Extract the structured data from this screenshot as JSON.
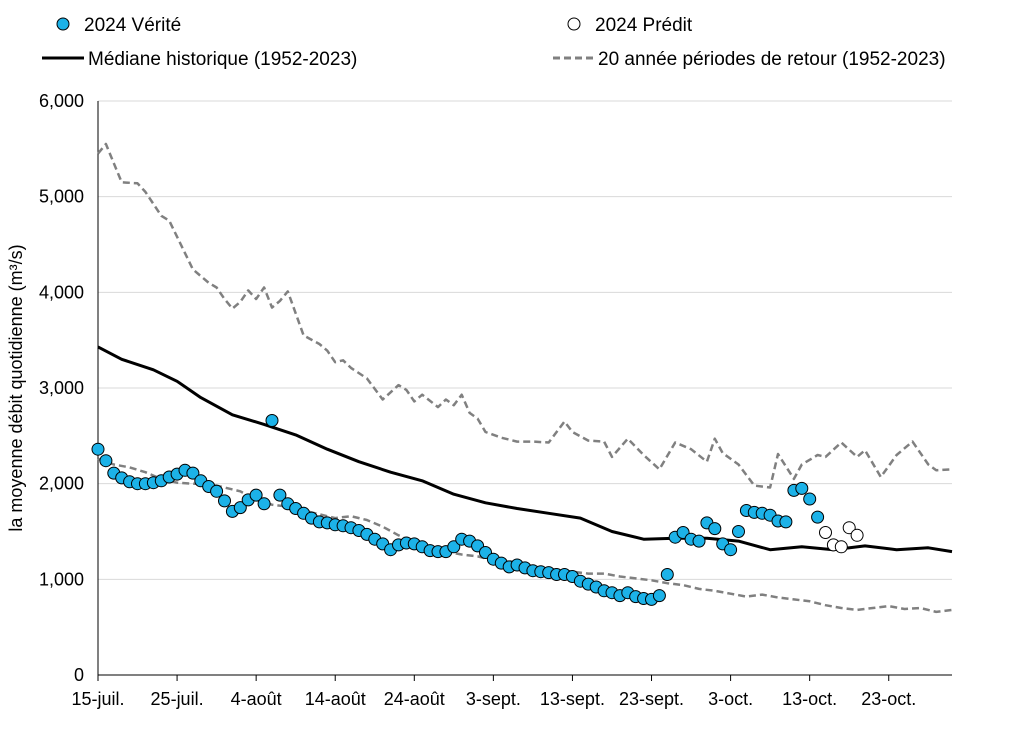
{
  "chart_data": {
    "type": "line",
    "title": "",
    "xlabel": "",
    "ylabel": "la moyenne débit quotidienne (m³/s)",
    "ylim": [
      0,
      6000
    ],
    "yticks": [
      0,
      1000,
      2000,
      3000,
      4000,
      5000,
      6000
    ],
    "ytick_labels": [
      "0",
      "1,000",
      "2,000",
      "3,000",
      "4,000",
      "5,000",
      "6,000"
    ],
    "x_start": "2024-07-15",
    "x_end": "2024-10-31",
    "xtick_labels": [
      "15-juil.",
      "25-juil.",
      "4-août",
      "14-août",
      "24-août",
      "3-sept.",
      "13-sept.",
      "23-sept.",
      "3-oct.",
      "13-oct.",
      "23-oct."
    ],
    "xtick_dates": [
      "2024-07-15",
      "2024-07-25",
      "2024-08-04",
      "2024-08-14",
      "2024-08-24",
      "2024-09-03",
      "2024-09-13",
      "2024-09-23",
      "2024-10-03",
      "2024-10-13",
      "2024-10-23"
    ],
    "grid": "horizontal",
    "legend_position": "top",
    "colors": {
      "observed": "#1cb2e8",
      "median": "#000000",
      "return_period": "#808080"
    },
    "series": [
      {
        "name": "2024 Vérité",
        "kind": "scatter",
        "marker": "filled-circle",
        "x": [
          "2024-07-15",
          "2024-07-16",
          "2024-07-17",
          "2024-07-18",
          "2024-07-19",
          "2024-07-20",
          "2024-07-21",
          "2024-07-22",
          "2024-07-23",
          "2024-07-24",
          "2024-07-25",
          "2024-07-26",
          "2024-07-27",
          "2024-07-28",
          "2024-07-29",
          "2024-07-30",
          "2024-07-31",
          "2024-08-01",
          "2024-08-02",
          "2024-08-03",
          "2024-08-04",
          "2024-08-05",
          "2024-08-06",
          "2024-08-07",
          "2024-08-08",
          "2024-08-09",
          "2024-08-10",
          "2024-08-11",
          "2024-08-12",
          "2024-08-13",
          "2024-08-14",
          "2024-08-15",
          "2024-08-16",
          "2024-08-17",
          "2024-08-18",
          "2024-08-19",
          "2024-08-20",
          "2024-08-21",
          "2024-08-22",
          "2024-08-23",
          "2024-08-24",
          "2024-08-25",
          "2024-08-26",
          "2024-08-27",
          "2024-08-28",
          "2024-08-29",
          "2024-08-30",
          "2024-08-31",
          "2024-09-01",
          "2024-09-02",
          "2024-09-03",
          "2024-09-04",
          "2024-09-05",
          "2024-09-06",
          "2024-09-07",
          "2024-09-08",
          "2024-09-09",
          "2024-09-10",
          "2024-09-11",
          "2024-09-12",
          "2024-09-13",
          "2024-09-14",
          "2024-09-15",
          "2024-09-16",
          "2024-09-17",
          "2024-09-18",
          "2024-09-19",
          "2024-09-20",
          "2024-09-21",
          "2024-09-22",
          "2024-09-23",
          "2024-09-24",
          "2024-09-25",
          "2024-09-26",
          "2024-09-27",
          "2024-09-28",
          "2024-09-29",
          "2024-09-30",
          "2024-10-01",
          "2024-10-02",
          "2024-10-03",
          "2024-10-04",
          "2024-10-05",
          "2024-10-06",
          "2024-10-07",
          "2024-10-08",
          "2024-10-09",
          "2024-10-10",
          "2024-10-11",
          "2024-10-12",
          "2024-10-13",
          "2024-10-14"
        ],
        "y": [
          2360,
          2240,
          2110,
          2060,
          2020,
          2000,
          2000,
          2010,
          2030,
          2070,
          2100,
          2140,
          2110,
          2030,
          1970,
          1920,
          1820,
          1710,
          1750,
          1830,
          1880,
          1790,
          2660,
          1880,
          1790,
          1740,
          1690,
          1640,
          1600,
          1590,
          1570,
          1560,
          1540,
          1510,
          1470,
          1420,
          1370,
          1310,
          1360,
          1380,
          1370,
          1340,
          1300,
          1290,
          1290,
          1340,
          1420,
          1400,
          1350,
          1280,
          1210,
          1170,
          1130,
          1150,
          1120,
          1090,
          1080,
          1070,
          1050,
          1050,
          1030,
          980,
          950,
          920,
          880,
          860,
          830,
          860,
          820,
          800,
          790,
          830,
          1050,
          1440,
          1490,
          1420,
          1400,
          1590,
          1530,
          1370,
          1310,
          1500,
          1720,
          1700,
          1690,
          1670,
          1610,
          1600,
          1930,
          1950,
          1840,
          1650
        ]
      },
      {
        "name": "2024 Prédit",
        "kind": "scatter",
        "marker": "open-circle",
        "x": [
          "2024-10-15",
          "2024-10-16",
          "2024-10-17",
          "2024-10-18",
          "2024-10-19"
        ],
        "y": [
          1490,
          1360,
          1340,
          1540,
          1460
        ]
      },
      {
        "name": "Médiane historique (1952-2023)",
        "kind": "line",
        "style": "solid",
        "x": [
          "2024-07-15",
          "2024-07-18",
          "2024-07-22",
          "2024-07-25",
          "2024-07-28",
          "2024-08-01",
          "2024-08-05",
          "2024-08-09",
          "2024-08-13",
          "2024-08-17",
          "2024-08-21",
          "2024-08-25",
          "2024-08-29",
          "2024-09-02",
          "2024-09-06",
          "2024-09-10",
          "2024-09-14",
          "2024-09-18",
          "2024-09-22",
          "2024-09-26",
          "2024-09-30",
          "2024-10-04",
          "2024-10-08",
          "2024-10-12",
          "2024-10-16",
          "2024-10-20",
          "2024-10-24",
          "2024-10-28",
          "2024-10-31"
        ],
        "y": [
          3430,
          3300,
          3190,
          3070,
          2900,
          2720,
          2620,
          2510,
          2360,
          2230,
          2120,
          2030,
          1890,
          1800,
          1740,
          1690,
          1640,
          1500,
          1420,
          1430,
          1430,
          1400,
          1310,
          1340,
          1310,
          1350,
          1310,
          1330,
          1290
        ]
      },
      {
        "name": "20 année périodes de retour (1952-2023)",
        "kind": "line",
        "style": "dashed",
        "segments": [
          {
            "x": [
              "2024-07-15",
              "2024-07-16",
              "2024-07-17",
              "2024-07-18",
              "2024-07-20",
              "2024-07-21",
              "2024-07-23",
              "2024-07-24",
              "2024-07-25",
              "2024-07-27",
              "2024-07-29",
              "2024-07-30",
              "2024-07-31",
              "2024-08-01",
              "2024-08-02",
              "2024-08-03",
              "2024-08-04",
              "2024-08-05",
              "2024-08-06",
              "2024-08-07",
              "2024-08-08",
              "2024-08-10",
              "2024-08-12",
              "2024-08-13",
              "2024-08-14",
              "2024-08-15",
              "2024-08-16",
              "2024-08-18",
              "2024-08-20",
              "2024-08-22",
              "2024-08-23",
              "2024-08-24",
              "2024-08-25",
              "2024-08-27",
              "2024-08-28",
              "2024-08-29",
              "2024-08-30",
              "2024-08-31",
              "2024-09-01",
              "2024-09-02",
              "2024-09-04",
              "2024-09-06",
              "2024-09-08",
              "2024-09-10",
              "2024-09-12",
              "2024-09-13",
              "2024-09-15",
              "2024-09-17",
              "2024-09-18",
              "2024-09-20",
              "2024-09-22",
              "2024-09-24",
              "2024-09-26",
              "2024-09-28",
              "2024-09-30",
              "2024-10-01",
              "2024-10-02",
              "2024-10-04",
              "2024-10-06",
              "2024-10-08",
              "2024-10-09",
              "2024-10-11",
              "2024-10-12",
              "2024-10-13",
              "2024-10-14",
              "2024-10-15",
              "2024-10-17",
              "2024-10-19",
              "2024-10-20",
              "2024-10-22",
              "2024-10-24",
              "2024-10-26",
              "2024-10-28",
              "2024-10-29",
              "2024-10-31"
            ],
            "y": [
              5450,
              5550,
              5350,
              5150,
              5140,
              5050,
              4800,
              4750,
              4580,
              4240,
              4100,
              4050,
              3930,
              3830,
              3900,
              4020,
              3930,
              4050,
              3840,
              3910,
              4010,
              3550,
              3460,
              3390,
              3270,
              3290,
              3210,
              3100,
              2880,
              3030,
              2980,
              2860,
              2930,
              2800,
              2880,
              2820,
              2930,
              2740,
              2680,
              2540,
              2480,
              2440,
              2440,
              2430,
              2650,
              2540,
              2450,
              2440,
              2280,
              2470,
              2300,
              2150,
              2430,
              2360,
              2230,
              2470,
              2320,
              2200,
              1980,
              1960,
              2310,
              2050,
              2200,
              2250,
              2300,
              2280,
              2430,
              2280,
              2350,
              2070,
              2300,
              2440,
              2200,
              2140,
              2150
            ]
          },
          {
            "x": [
              "2024-07-15",
              "2024-07-17",
              "2024-07-19",
              "2024-07-21",
              "2024-07-23",
              "2024-07-25",
              "2024-07-27",
              "2024-07-29",
              "2024-07-31",
              "2024-08-02",
              "2024-08-04",
              "2024-08-06",
              "2024-08-08",
              "2024-08-10",
              "2024-08-12",
              "2024-08-14",
              "2024-08-16",
              "2024-08-18",
              "2024-08-20",
              "2024-08-22",
              "2024-08-24",
              "2024-08-26",
              "2024-08-28",
              "2024-08-30",
              "2024-09-01",
              "2024-09-03",
              "2024-09-05",
              "2024-09-07",
              "2024-09-09",
              "2024-09-11",
              "2024-09-13",
              "2024-09-15",
              "2024-09-17",
              "2024-09-19",
              "2024-09-21",
              "2024-09-23",
              "2024-09-25",
              "2024-09-27",
              "2024-09-29",
              "2024-10-01",
              "2024-10-03",
              "2024-10-05",
              "2024-10-07",
              "2024-10-09",
              "2024-10-11",
              "2024-10-13",
              "2024-10-15",
              "2024-10-17",
              "2024-10-19",
              "2024-10-21",
              "2024-10-23",
              "2024-10-25",
              "2024-10-27",
              "2024-10-29",
              "2024-10-31"
            ],
            "y": [
              2260,
              2200,
              2170,
              2120,
              2050,
              2010,
              2000,
              2000,
              1960,
              1920,
              1830,
              1780,
              1760,
              1720,
              1680,
              1640,
              1660,
              1620,
              1550,
              1460,
              1380,
              1330,
              1290,
              1260,
              1240,
              1200,
              1190,
              1160,
              1120,
              1100,
              1080,
              1060,
              1060,
              1030,
              1010,
              990,
              960,
              940,
              900,
              880,
              850,
              820,
              840,
              810,
              790,
              770,
              730,
              700,
              680,
              700,
              720,
              690,
              700,
              660,
              680
            ]
          }
        ]
      }
    ]
  }
}
